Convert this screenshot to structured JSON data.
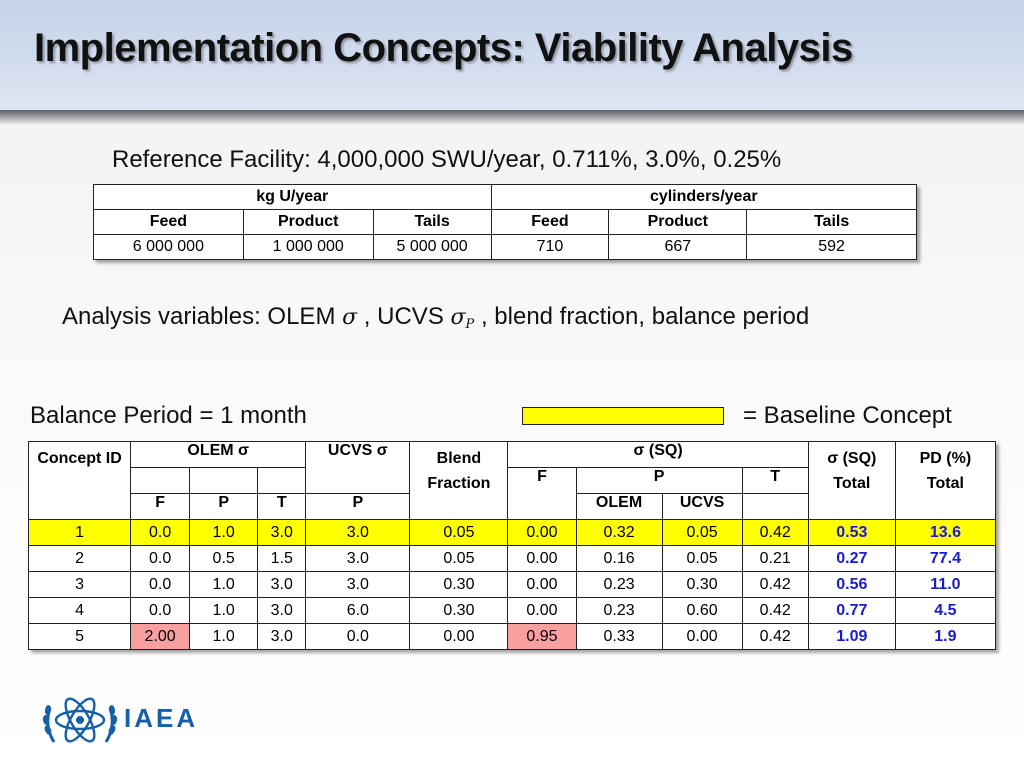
{
  "slide": {
    "title": "Implementation Concepts: Viability Analysis",
    "reference_facility": "Reference Facility: 4,000,000 SWU/year, 0.711%, 3.0%, 0.25%",
    "analysis_prefix": "Analysis variables: OLEM ",
    "analysis_sigma": "σ",
    "analysis_mid": " , UCVS ",
    "analysis_sigma_p": "σ",
    "analysis_sub_p": "P",
    "analysis_suffix": " , blend fraction, balance period",
    "balance_period": "Balance Period = 1 month",
    "legend_text": "= Baseline Concept",
    "legend_color": "#ffff00"
  },
  "ref_table": {
    "group_headers": [
      "kg U/year",
      "cylinders/year"
    ],
    "sub_headers": [
      "Feed",
      "Product",
      "Tails",
      "Feed",
      "Product",
      "Tails"
    ],
    "values": [
      "6 000 000",
      "1 000 000",
      "5 000 000",
      "710",
      "667",
      "592"
    ]
  },
  "main_table": {
    "headers": {
      "concept_id": "Concept ID",
      "olem": "OLEM σ",
      "olem_f": "F",
      "olem_p": "P",
      "olem_t": "T",
      "ucvs": "UCVS σ",
      "ucvs_p": "P",
      "blend": "Blend Fraction",
      "sigma_sq": "σ (SQ)",
      "sq_f": "F",
      "sq_p": "P",
      "sq_t": "T",
      "sq_p_olem": "OLEM",
      "sq_p_ucvs": "UCVS",
      "sigma_total_a": "σ (SQ)",
      "sigma_total_b": "Total",
      "pd_a": "PD (%)",
      "pd_b": "Total"
    },
    "rows": [
      {
        "id": "1",
        "olem_f": "0.0",
        "olem_p": "1.0",
        "olem_t": "3.0",
        "ucvs_p": "3.0",
        "blend": "0.05",
        "sq_f": "0.00",
        "sq_p_olem": "0.32",
        "sq_p_ucvs": "0.05",
        "sq_t": "0.42",
        "sigma_total": "0.53",
        "pd_total": "13.6"
      },
      {
        "id": "2",
        "olem_f": "0.0",
        "olem_p": "0.5",
        "olem_t": "1.5",
        "ucvs_p": "3.0",
        "blend": "0.05",
        "sq_f": "0.00",
        "sq_p_olem": "0.16",
        "sq_p_ucvs": "0.05",
        "sq_t": "0.21",
        "sigma_total": "0.27",
        "pd_total": "77.4"
      },
      {
        "id": "3",
        "olem_f": "0.0",
        "olem_p": "1.0",
        "olem_t": "3.0",
        "ucvs_p": "3.0",
        "blend": "0.30",
        "sq_f": "0.00",
        "sq_p_olem": "0.23",
        "sq_p_ucvs": "0.30",
        "sq_t": "0.42",
        "sigma_total": "0.56",
        "pd_total": "11.0"
      },
      {
        "id": "4",
        "olem_f": "0.0",
        "olem_p": "1.0",
        "olem_t": "3.0",
        "ucvs_p": "6.0",
        "blend": "0.30",
        "sq_f": "0.00",
        "sq_p_olem": "0.23",
        "sq_p_ucvs": "0.60",
        "sq_t": "0.42",
        "sigma_total": "0.77",
        "pd_total": "4.5"
      },
      {
        "id": "5",
        "olem_f": "2.00",
        "olem_p": "1.0",
        "olem_t": "3.0",
        "ucvs_p": "0.0",
        "blend": "0.00",
        "sq_f": "0.95",
        "sq_p_olem": "0.33",
        "sq_p_ucvs": "0.00",
        "sq_t": "0.42",
        "sigma_total": "1.09",
        "pd_total": "1.9"
      }
    ],
    "colors": {
      "baseline": "#ffff00",
      "highlight": "#f8a0a0",
      "total_text": "#1a1ad0"
    }
  },
  "logo": {
    "text": "IAEA",
    "icon": "iaea-atom-emblem-icon",
    "color": "#1560a8"
  }
}
